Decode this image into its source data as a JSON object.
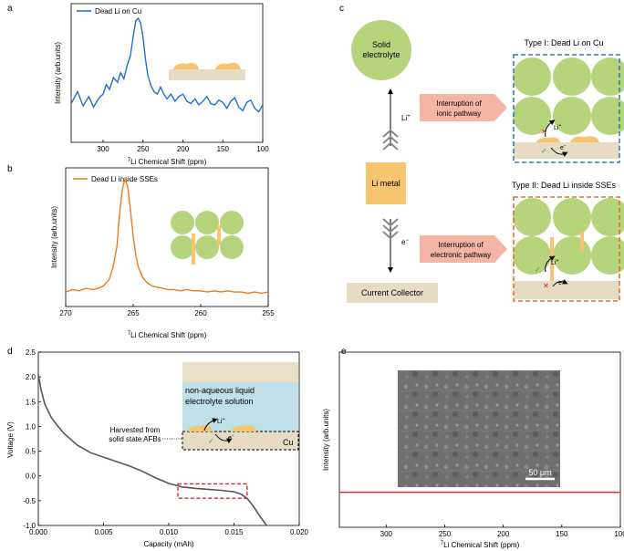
{
  "panels": {
    "a": {
      "letter": "a",
      "legend": "Dead Li on Cu",
      "ylabel": "Intensity (arb.units)",
      "xlabel_sup": "7",
      "xlabel_rest": "Li Chemical Shift (ppm)",
      "line_color": "#1f6fd1"
    },
    "b": {
      "letter": "b",
      "legend": "Dead Li inside SSEs",
      "ylabel": "Intensity (arb.units)",
      "xlabel_sup": "7",
      "xlabel_rest": "Li Chemical Shift (ppm)",
      "line_color": "#f07a19"
    },
    "c": {
      "letter": "c",
      "solid_electrolyte_line1": "Solid",
      "solid_electrolyte_line2": "electrolyte",
      "li_metal": "Li metal",
      "current_collector": "Current Collector",
      "li_plus": "Li",
      "li_plus_sup": "+",
      "e_minus": "e",
      "e_minus_sup": "−",
      "ionic_line1": "Interruption of",
      "ionic_line2": "ionic pathway",
      "electronic_line1": "Interruption of",
      "electronic_line2": "electronic pathway",
      "type1": "Type I: Dead Li on Cu",
      "type2": "Type II: Dead Li inside SSEs",
      "box1_color": "#2f7fc1",
      "box2_color": "#e8702a",
      "sphere_color": "#b5d47c",
      "li_color": "#f5c56f",
      "collector_color": "#e6dcc4",
      "arrow_color": "#f4b5a5"
    },
    "d": {
      "letter": "d",
      "ylabel": "Voltage (V)",
      "xlabel": "Capacity (mAh)",
      "inset_line1": "non-aqueous liquid",
      "inset_line2": "electrolyte solution",
      "harvested_line1": "Harvested from",
      "harvested_line2": "solid state AFBs",
      "cu_label": "Cu",
      "li_plus": "Li",
      "li_plus_sup": "+",
      "e_minus": "e",
      "e_minus_sup": "−",
      "inset_liquid_color": "#bfe0e8",
      "inset_top_color": "#e8dfc8"
    },
    "e": {
      "letter": "e",
      "ylabel": "Intensity (arb.units)",
      "xlabel_sup": "7",
      "xlabel_rest": "Li Chemical Shift (ppm)",
      "scalebar": "50 μm",
      "line_color": "#e03030"
    }
  },
  "chart_data": [
    {
      "id": "a",
      "type": "line",
      "title": "",
      "legend": [
        "Dead Li on Cu"
      ],
      "xlabel": "7Li Chemical Shift (ppm)",
      "ylabel": "Intensity (arb.units)",
      "xlim": [
        340,
        100
      ],
      "ylim": [
        0,
        1
      ],
      "xticks": [
        300,
        250,
        200,
        150,
        100
      ],
      "x": [
        340,
        332,
        325,
        318,
        312,
        305,
        300,
        296,
        292,
        287,
        282,
        278,
        274,
        270,
        266,
        262,
        259,
        256,
        253,
        250,
        247,
        244,
        240,
        236,
        232,
        228,
        224,
        220,
        215,
        210,
        205,
        200,
        195,
        190,
        185,
        180,
        175,
        170,
        165,
        160,
        155,
        150,
        145,
        140,
        135,
        130,
        125,
        120,
        115,
        110,
        105,
        100
      ],
      "values": [
        0.28,
        0.38,
        0.26,
        0.34,
        0.25,
        0.33,
        0.36,
        0.44,
        0.4,
        0.5,
        0.46,
        0.54,
        0.49,
        0.6,
        0.68,
        0.86,
        0.98,
        1.0,
        0.96,
        0.84,
        0.66,
        0.52,
        0.43,
        0.38,
        0.36,
        0.42,
        0.36,
        0.32,
        0.36,
        0.3,
        0.34,
        0.36,
        0.3,
        0.28,
        0.32,
        0.27,
        0.3,
        0.34,
        0.28,
        0.27,
        0.31,
        0.29,
        0.24,
        0.3,
        0.33,
        0.25,
        0.22,
        0.29,
        0.31,
        0.24,
        0.21,
        0.27
      ]
    },
    {
      "id": "b",
      "type": "line",
      "title": "",
      "legend": [
        "Dead Li inside SSEs"
      ],
      "xlabel": "7Li Chemical Shift (ppm)",
      "ylabel": "Intensity (arb.units)",
      "xlim": [
        270,
        255
      ],
      "ylim": [
        0,
        1
      ],
      "xticks": [
        270,
        265,
        260,
        255
      ],
      "x": [
        270,
        269.5,
        269,
        268.5,
        268,
        267.6,
        267.2,
        266.8,
        266.5,
        266.2,
        266.0,
        265.8,
        265.6,
        265.4,
        265.2,
        265.0,
        264.8,
        264.6,
        264.3,
        264.0,
        263.6,
        263.2,
        262.8,
        262.4,
        262.0,
        261.5,
        261.0,
        260.5,
        260.0,
        259.5,
        259.0,
        258.5,
        258.0,
        257.5,
        257.0,
        256.5,
        256.0,
        255.5,
        255
      ],
      "values": [
        0.06,
        0.08,
        0.07,
        0.09,
        0.08,
        0.09,
        0.11,
        0.16,
        0.26,
        0.44,
        0.72,
        0.92,
        1.0,
        0.93,
        0.74,
        0.52,
        0.36,
        0.26,
        0.18,
        0.14,
        0.11,
        0.1,
        0.09,
        0.08,
        0.08,
        0.07,
        0.08,
        0.07,
        0.07,
        0.06,
        0.07,
        0.06,
        0.07,
        0.06,
        0.06,
        0.05,
        0.06,
        0.05,
        0.06
      ]
    },
    {
      "id": "d",
      "type": "line",
      "title": "",
      "xlabel": "Capacity (mAh)",
      "ylabel": "Voltage (V)",
      "xlim": [
        0,
        0.02
      ],
      "ylim": [
        -1.0,
        2.5
      ],
      "xticks": [
        0.0,
        0.005,
        0.01,
        0.015,
        0.02
      ],
      "yticks": [
        -1.0,
        -0.5,
        0.0,
        0.5,
        1.0,
        1.5,
        2.0,
        2.5
      ],
      "x": [
        0,
        0.0002,
        0.0005,
        0.001,
        0.0015,
        0.002,
        0.003,
        0.004,
        0.005,
        0.006,
        0.007,
        0.008,
        0.009,
        0.01,
        0.011,
        0.012,
        0.013,
        0.014,
        0.015,
        0.0155,
        0.016,
        0.0165,
        0.017,
        0.0175
      ],
      "values": [
        2.05,
        1.75,
        1.45,
        1.18,
        1.0,
        0.85,
        0.62,
        0.47,
        0.38,
        0.29,
        0.2,
        0.09,
        -0.04,
        -0.15,
        -0.22,
        -0.25,
        -0.27,
        -0.29,
        -0.32,
        -0.36,
        -0.45,
        -0.62,
        -0.82,
        -1.0
      ],
      "annotation_box_x": [
        0.0107,
        0.016
      ],
      "annotation_box_y": [
        -0.45,
        -0.16
      ]
    },
    {
      "id": "e",
      "type": "line",
      "title": "",
      "xlabel": "7Li Chemical Shift (ppm)",
      "ylabel": "Intensity (arb.units)",
      "xlim": [
        340,
        100
      ],
      "ylim": [
        0,
        1
      ],
      "xticks": [
        300,
        250,
        200,
        150,
        100
      ],
      "x": [
        340,
        300,
        250,
        200,
        150,
        100
      ],
      "values": [
        0.2,
        0.2,
        0.2,
        0.2,
        0.2,
        0.2
      ]
    }
  ]
}
